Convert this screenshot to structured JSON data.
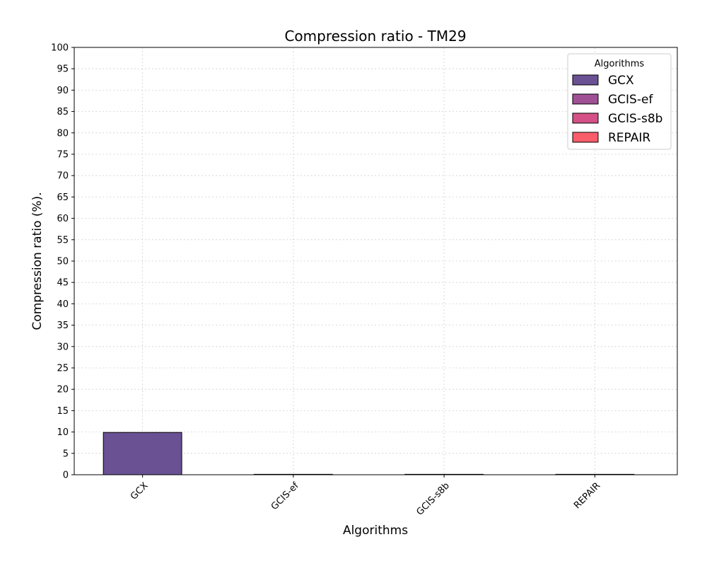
{
  "chart_data": {
    "type": "bar",
    "title": "Compression ratio -  TM29",
    "xlabel": "Algorithms",
    "ylabel": "Compression ratio (%).",
    "categories": [
      "GCX",
      "GCIS-ef",
      "GCIS-s8b",
      "REPAIR"
    ],
    "values": [
      9.9,
      0.1,
      0.1,
      0.1
    ],
    "colors": [
      "#6a5193",
      "#a05195",
      "#d45087",
      "#f95d6a"
    ],
    "ylim": [
      0,
      100
    ],
    "yticks": [
      0,
      5,
      10,
      15,
      20,
      25,
      30,
      35,
      40,
      45,
      50,
      55,
      60,
      65,
      70,
      75,
      80,
      85,
      90,
      95,
      100
    ],
    "grid": true,
    "legend": {
      "title": "Algorithms",
      "placement": "top-right",
      "entries": [
        "GCX",
        "GCIS-ef",
        "GCIS-s8b",
        "REPAIR"
      ]
    }
  }
}
